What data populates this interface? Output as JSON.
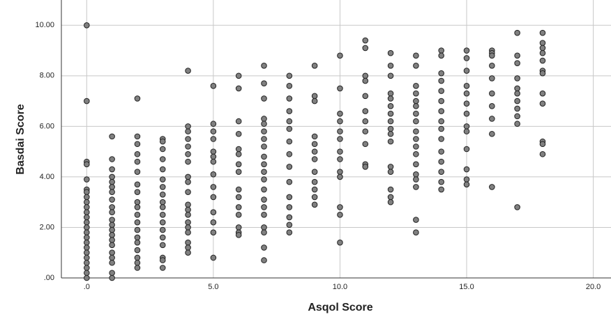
{
  "chart_data": {
    "type": "scatter",
    "x_label": "Asqol Score",
    "y_label": "Basdai Score",
    "xlim": [
      -1,
      20.7
    ],
    "ylim": [
      0,
      11
    ],
    "xticks": [
      {
        "value": 0,
        "label": ".0"
      },
      {
        "value": 5,
        "label": "5.0"
      },
      {
        "value": 10,
        "label": "10.0"
      },
      {
        "value": 15,
        "label": "15.0"
      },
      {
        "value": 20,
        "label": "20.0"
      }
    ],
    "yticks": [
      {
        "value": 0,
        "label": ".00"
      },
      {
        "value": 2,
        "label": "2.00"
      },
      {
        "value": 4,
        "label": "4.00"
      },
      {
        "value": 6,
        "label": "6.00"
      },
      {
        "value": 8,
        "label": "8.00"
      },
      {
        "value": 10,
        "label": "10.00"
      }
    ],
    "grid": true,
    "series": [
      {
        "color": "#808080",
        "x": [
          0,
          0,
          0,
          0,
          0,
          0,
          0,
          0,
          0,
          0,
          0,
          0,
          0,
          0,
          0,
          0,
          0,
          0,
          0,
          0,
          0,
          0,
          0,
          0,
          1,
          1,
          1,
          1,
          1,
          1,
          1,
          1,
          1,
          1,
          1,
          1,
          1,
          1,
          1,
          1,
          1,
          1,
          1,
          1,
          1,
          2,
          2,
          2,
          2,
          2,
          2,
          2,
          2,
          2,
          2,
          2,
          2,
          2,
          2,
          2,
          2,
          2,
          2,
          2,
          3,
          3,
          3,
          3,
          3,
          3,
          3,
          3,
          3,
          3,
          3,
          3,
          3,
          3,
          3,
          3,
          3,
          3,
          4,
          4,
          4,
          4,
          4,
          4,
          4,
          4,
          4,
          4,
          4,
          4,
          4,
          4,
          4,
          4,
          4,
          4,
          4,
          5,
          5,
          5,
          5,
          5,
          5,
          5,
          5,
          5,
          5,
          5,
          5,
          5,
          5,
          6,
          6,
          6,
          6,
          6,
          6,
          6,
          6,
          6,
          6,
          6,
          6,
          6,
          6,
          6,
          7,
          7,
          7,
          7,
          7,
          7,
          7,
          7,
          7,
          7,
          7,
          7,
          7,
          7,
          7,
          7,
          7,
          7,
          7,
          7,
          8,
          8,
          8,
          8,
          8,
          8,
          8,
          8,
          8,
          8,
          8,
          8,
          8,
          8,
          8,
          9,
          9,
          9,
          9,
          9,
          9,
          9,
          9,
          9,
          9,
          9,
          9,
          10,
          10,
          10,
          10,
          10,
          10,
          10,
          10,
          10,
          10,
          10,
          10,
          10,
          11,
          11,
          11,
          11,
          11,
          11,
          11,
          11,
          11,
          11,
          11,
          12,
          12,
          12,
          12,
          12,
          12,
          12,
          12,
          12,
          12,
          12,
          12,
          12,
          12,
          12,
          12,
          13,
          13,
          13,
          13,
          13,
          13,
          13,
          13,
          13,
          13,
          13,
          13,
          13,
          13,
          13,
          13,
          13,
          13,
          14,
          14,
          14,
          14,
          14,
          14,
          14,
          14,
          14,
          14,
          14,
          14,
          14,
          14,
          14,
          15,
          15,
          15,
          15,
          15,
          15,
          15,
          15,
          15,
          15,
          15,
          15,
          15,
          16,
          16,
          16,
          16,
          16,
          16,
          16,
          16,
          16,
          16,
          17,
          17,
          17,
          17,
          17,
          17,
          17,
          17,
          17,
          17,
          17,
          18,
          18,
          18,
          18,
          18,
          18,
          18,
          18,
          18,
          18,
          18,
          18
        ],
        "y": [
          10.0,
          7.0,
          4.6,
          4.5,
          3.9,
          3.5,
          3.4,
          3.2,
          3.0,
          2.8,
          2.6,
          2.4,
          2.2,
          2.0,
          1.8,
          1.6,
          1.4,
          1.2,
          1.0,
          0.8,
          0.6,
          0.4,
          0.2,
          0.0,
          5.6,
          4.7,
          4.3,
          4.0,
          3.8,
          3.6,
          3.4,
          3.1,
          2.8,
          2.6,
          2.3,
          2.1,
          1.9,
          1.7,
          1.5,
          1.3,
          1.0,
          0.8,
          0.6,
          0.2,
          0.0,
          7.1,
          5.6,
          5.3,
          4.9,
          4.6,
          4.2,
          3.7,
          3.4,
          3.0,
          2.8,
          2.5,
          2.2,
          1.9,
          1.6,
          1.4,
          1.1,
          0.8,
          0.6,
          0.4,
          5.5,
          5.4,
          5.1,
          4.7,
          4.3,
          3.9,
          3.6,
          3.3,
          3.0,
          2.8,
          2.5,
          2.2,
          1.9,
          1.6,
          1.3,
          0.8,
          0.7,
          0.4,
          8.2,
          6.0,
          5.8,
          5.5,
          5.2,
          4.9,
          4.6,
          4.0,
          3.8,
          3.4,
          2.9,
          2.7,
          2.5,
          2.2,
          2.0,
          1.8,
          1.4,
          1.2,
          1.0,
          7.6,
          6.1,
          5.8,
          5.5,
          5.0,
          4.8,
          4.6,
          4.1,
          3.6,
          3.2,
          2.6,
          2.2,
          1.8,
          0.8,
          8.0,
          7.5,
          6.2,
          5.7,
          5.1,
          4.9,
          4.5,
          4.2,
          3.5,
          3.2,
          2.8,
          2.5,
          2.0,
          1.8,
          1.7,
          8.4,
          7.7,
          7.1,
          6.3,
          6.1,
          5.8,
          5.5,
          5.2,
          4.8,
          4.5,
          4.2,
          3.9,
          3.5,
          3.1,
          2.8,
          2.5,
          2.0,
          1.8,
          1.2,
          0.7,
          8.0,
          7.6,
          7.1,
          6.6,
          6.2,
          5.9,
          5.4,
          4.9,
          4.4,
          3.8,
          3.2,
          2.8,
          2.4,
          2.1,
          1.8,
          8.4,
          7.2,
          7.0,
          5.6,
          5.3,
          5.0,
          4.7,
          4.2,
          3.8,
          3.5,
          3.2,
          2.9,
          8.8,
          7.5,
          6.5,
          6.2,
          5.8,
          5.5,
          5.0,
          4.7,
          4.2,
          4.0,
          2.8,
          2.5,
          1.4,
          9.4,
          9.1,
          8.0,
          7.8,
          7.2,
          6.6,
          6.2,
          5.8,
          5.3,
          4.5,
          4.4,
          8.9,
          8.4,
          8.0,
          7.3,
          7.1,
          6.8,
          6.5,
          6.2,
          5.9,
          5.7,
          5.4,
          4.4,
          4.2,
          3.5,
          3.2,
          3.0,
          8.8,
          8.4,
          7.6,
          7.3,
          7.0,
          6.8,
          6.5,
          6.2,
          5.8,
          5.5,
          5.2,
          4.9,
          4.5,
          4.1,
          3.9,
          3.6,
          2.3,
          1.8,
          9.0,
          8.8,
          8.1,
          7.8,
          7.4,
          7.0,
          6.6,
          6.2,
          5.9,
          5.5,
          5.0,
          4.6,
          4.2,
          3.8,
          3.5,
          9.0,
          8.7,
          8.2,
          7.6,
          7.3,
          6.9,
          6.5,
          6.0,
          5.8,
          5.1,
          4.3,
          3.9,
          3.7,
          9.0,
          8.9,
          8.8,
          8.4,
          7.9,
          7.3,
          6.8,
          6.3,
          5.7,
          3.6,
          9.7,
          8.8,
          8.5,
          7.9,
          7.5,
          7.3,
          7.0,
          6.7,
          6.4,
          6.1,
          2.8,
          9.7,
          9.3,
          9.1,
          8.9,
          8.6,
          8.2,
          8.1,
          7.3,
          6.9,
          5.4,
          5.3,
          4.9
        ]
      }
    ]
  }
}
